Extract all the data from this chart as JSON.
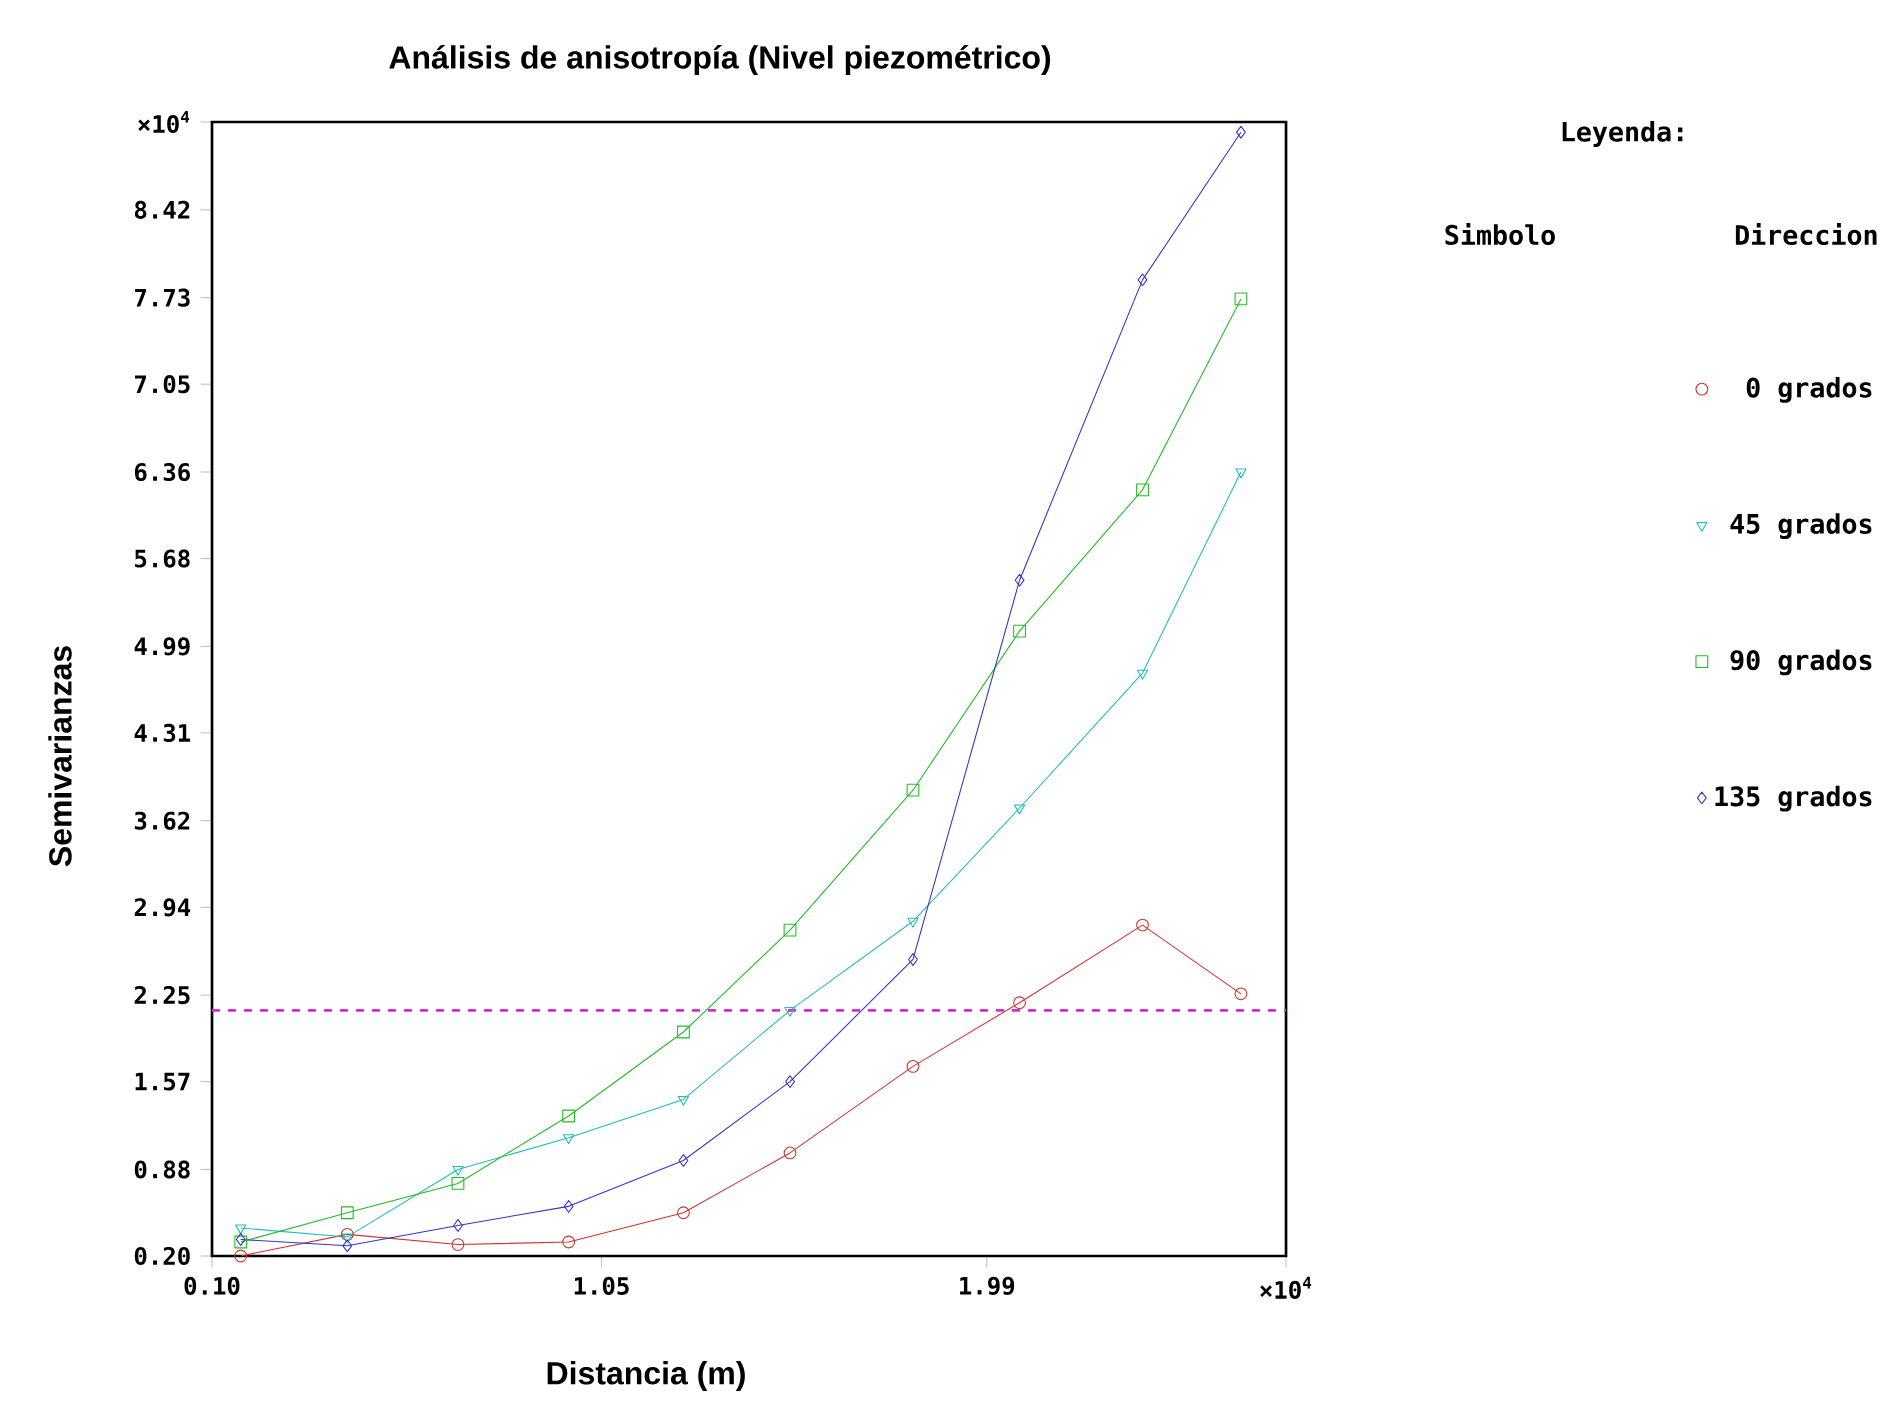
{
  "chart_data": {
    "type": "line",
    "title": "Análisis de anisotropía (Nivel piezométrico)",
    "xlabel": "Distancia (m)",
    "ylabel": "Semivarianzas",
    "legend_title": "Leyenda:",
    "annotations": [
      "Simbolo",
      "Direccion"
    ],
    "x": [
      0.17,
      0.43,
      0.7,
      0.97,
      1.25,
      1.51,
      1.81,
      2.07,
      2.37,
      2.61
    ],
    "series": [
      {
        "name": "0 grados",
        "color": "#cc3333",
        "marker": "circle",
        "values": [
          0.2,
          0.37,
          0.29,
          0.31,
          0.54,
          1.01,
          1.69,
          2.19,
          2.8,
          2.26
        ]
      },
      {
        "name": "45 grados",
        "color": "#22bbbb",
        "marker": "triangle",
        "values": [
          0.42,
          0.35,
          0.88,
          1.13,
          1.43,
          2.13,
          2.83,
          3.72,
          4.78,
          6.36
        ]
      },
      {
        "name": "90 grados",
        "color": "#22bb22",
        "marker": "square",
        "values": [
          0.31,
          0.54,
          0.77,
          1.3,
          1.96,
          2.76,
          3.86,
          5.11,
          6.22,
          7.72
        ]
      },
      {
        "name": "135 grados",
        "color": "#3333cc",
        "marker": "diamond",
        "values": [
          0.33,
          0.28,
          0.44,
          0.59,
          0.95,
          1.57,
          2.53,
          5.51,
          7.87,
          9.03
        ]
      }
    ],
    "xlim": [
      0.1,
      2.72
    ],
    "ylim": [
      0.2,
      9.11
    ],
    "xticks": [
      {
        "value": 0.1,
        "label": "0.10"
      },
      1.05,
      1.99,
      {
        "value": 2.72,
        "label": "×10$^{4}$"
      }
    ],
    "yticks": [
      {
        "value": 0.2,
        "label": "0.20"
      },
      0.88,
      1.57,
      2.25,
      2.94,
      3.62,
      4.31,
      4.99,
      5.68,
      6.36,
      7.05,
      7.73,
      8.42,
      {
        "value": 9.11,
        "label": "×10$^{4}$"
      }
    ],
    "ref_lines": [
      {
        "axis": "y",
        "value": 2.13,
        "color": "#cc33cc",
        "line_style": "dashed"
      }
    ],
    "grid": false,
    "legend": "right",
    "line_style": "solid"
  }
}
